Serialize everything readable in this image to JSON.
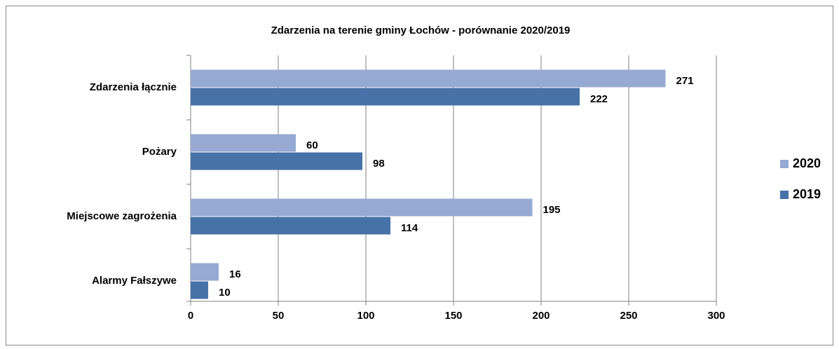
{
  "chart_data": {
    "type": "bar",
    "orientation": "horizontal",
    "title": "Zdarzenia na terenie gminy Łochów - porównanie 2020/2019",
    "categories": [
      "Zdarzenia łącznie",
      "Pożary",
      "Miejscowe zagrożenia",
      "Alarmy Fałszywe"
    ],
    "series": [
      {
        "name": "2020",
        "color": "#95a9d3",
        "values": [
          271,
          60,
          195,
          16
        ]
      },
      {
        "name": "2019",
        "color": "#4672a8",
        "values": [
          222,
          98,
          114,
          10
        ]
      }
    ],
    "xlim": [
      0,
      300
    ],
    "xticks": [
      0,
      50,
      100,
      150,
      200,
      250,
      300
    ],
    "grid": true,
    "legend": "right"
  }
}
